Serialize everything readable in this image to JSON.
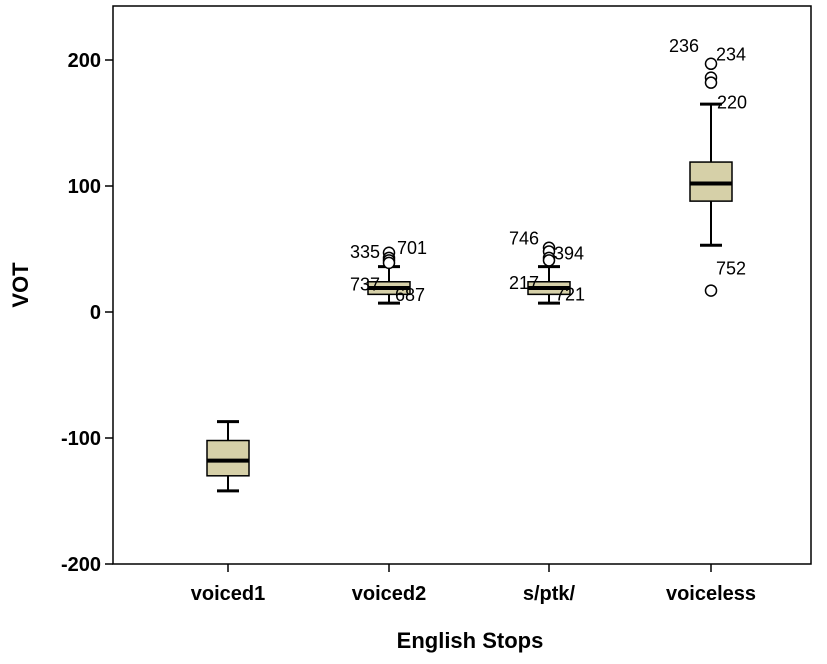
{
  "chart_data": {
    "type": "boxplot",
    "title": "",
    "xlabel": "English Stops",
    "ylabel": "VOT",
    "ylim": [
      -200,
      240
    ],
    "yticks": [
      -200,
      -100,
      0,
      100,
      200
    ],
    "ytick_labels": [
      "-200",
      "-100",
      "0",
      "100",
      "200"
    ],
    "grid": false,
    "legend": "none",
    "colors": {
      "box_fill": "#d6d0a8",
      "stroke": "#000000",
      "background": "#ffffff"
    },
    "categories": [
      "voiced1",
      "voiced2",
      "s/ptk/",
      "voiceless"
    ],
    "boxes": [
      {
        "category": "voiced1",
        "whisker_low": -142,
        "q1": -130,
        "median": -118,
        "q3": -102,
        "whisker_high": -87,
        "outliers": []
      },
      {
        "category": "voiced2",
        "whisker_low": 7,
        "q1": 14,
        "median": 19,
        "q3": 24,
        "whisker_high": 36,
        "outliers": [
          {
            "y": 47,
            "label": "335"
          },
          {
            "y": 43,
            "label": "701"
          },
          {
            "y": 41,
            "label": "737"
          },
          {
            "y": 39,
            "label": "687"
          }
        ]
      },
      {
        "category": "s/ptk/",
        "whisker_low": 7,
        "q1": 14,
        "median": 19,
        "q3": 24,
        "whisker_high": 36,
        "outliers": [
          {
            "y": 51,
            "label": "746"
          },
          {
            "y": 48,
            "label": "394"
          },
          {
            "y": 43,
            "label": "217"
          },
          {
            "y": 41,
            "label": "721"
          }
        ]
      },
      {
        "category": "voiceless",
        "whisker_low": 53,
        "q1": 88,
        "median": 102,
        "q3": 119,
        "whisker_high": 165,
        "outliers": [
          {
            "y": 197,
            "label": "236"
          },
          {
            "y": 186,
            "label": "234"
          },
          {
            "y": 182,
            "label": "220"
          },
          {
            "y": 17,
            "label": "752"
          }
        ]
      }
    ]
  }
}
